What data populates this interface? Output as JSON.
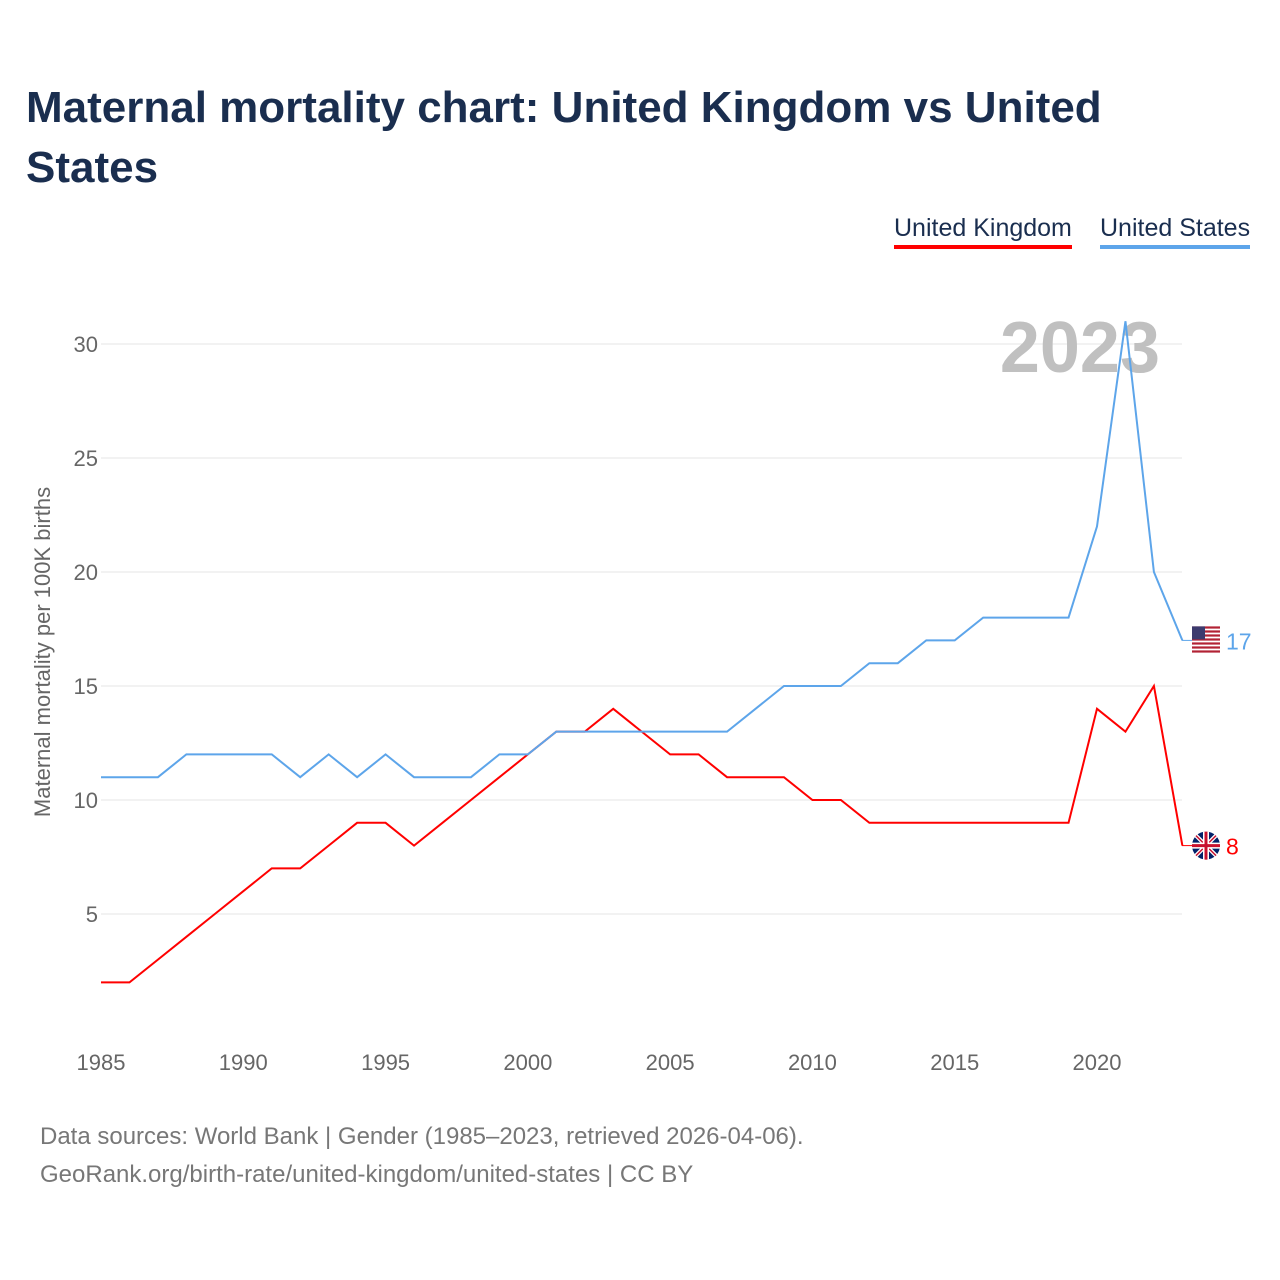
{
  "title": "Maternal mortality chart: United Kingdom vs United States",
  "legend": [
    "United Kingdom",
    "United States"
  ],
  "year_label": "2023",
  "footer": {
    "line1": "Data sources: World Bank | Gender (1985–2023, retrieved 2026-04-06).",
    "line2": "GeoRank.org/birth-rate/united-kingdom/united-states | CC BY"
  },
  "chart_data": {
    "type": "line",
    "title": "Maternal mortality chart: United Kingdom vs United States",
    "xlabel": "",
    "ylabel": "Maternal mortality per 100K births",
    "xlim": [
      1985,
      2023
    ],
    "ylim": [
      0,
      32
    ],
    "grid": true,
    "legend_placement": "top-right",
    "x_ticks": [
      1985,
      1990,
      1995,
      2000,
      2005,
      2010,
      2015,
      2020
    ],
    "y_ticks": [
      5,
      10,
      15,
      20,
      25,
      30
    ],
    "x": [
      1985,
      1986,
      1987,
      1988,
      1989,
      1990,
      1991,
      1992,
      1993,
      1994,
      1995,
      1996,
      1997,
      1998,
      1999,
      2000,
      2001,
      2002,
      2003,
      2004,
      2005,
      2006,
      2007,
      2008,
      2009,
      2010,
      2011,
      2012,
      2013,
      2014,
      2015,
      2016,
      2017,
      2018,
      2019,
      2020,
      2021,
      2022,
      2023
    ],
    "series": [
      {
        "name": "United Kingdom",
        "color": "#ff0000",
        "end_label": "8",
        "values": [
          2,
          2,
          3,
          4,
          5,
          6,
          7,
          7,
          8,
          9,
          9,
          8,
          9,
          10,
          11,
          12,
          13,
          13,
          14,
          13,
          12,
          12,
          11,
          11,
          11,
          10,
          10,
          9,
          9,
          9,
          9,
          9,
          9,
          9,
          9,
          14,
          13,
          15,
          8
        ]
      },
      {
        "name": "United States",
        "color": "#5da5ea",
        "end_label": "17",
        "values": [
          11,
          11,
          11,
          12,
          12,
          12,
          12,
          11,
          12,
          11,
          12,
          11,
          11,
          11,
          12,
          12,
          13,
          13,
          13,
          13,
          13,
          13,
          13,
          14,
          15,
          15,
          15,
          16,
          16,
          17,
          17,
          18,
          18,
          18,
          18,
          22,
          31,
          20,
          17
        ]
      }
    ]
  }
}
